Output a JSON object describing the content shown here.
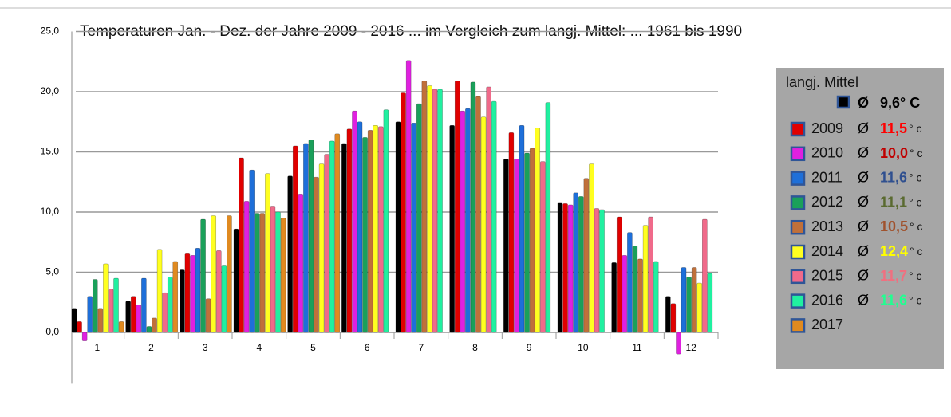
{
  "chart_data": {
    "type": "bar",
    "title": "Temperaturen  Jan. - Dez. der Jahre 2009 - 2016 ... im Vergleich zum   langj. Mittel: ... 1961  bis 1990",
    "categories": [
      "1",
      "2",
      "3",
      "4",
      "5",
      "6",
      "7",
      "8",
      "9",
      "10",
      "11",
      "12"
    ],
    "ylim": [
      -4.2,
      25
    ],
    "yticks": [
      {
        "value": 0,
        "label": "0,0"
      },
      {
        "value": 5,
        "label": "5,0"
      },
      {
        "value": 10,
        "label": "10,0"
      },
      {
        "value": 15,
        "label": "15,0"
      },
      {
        "value": 20,
        "label": "20,0"
      },
      {
        "value": 25,
        "label": "25,0"
      }
    ],
    "grid": true,
    "legend_symbol": "Ø",
    "mean_unit": "° c",
    "series": [
      {
        "name": "langj. Mittel",
        "color": "#000000",
        "mean": "9,6° C",
        "mean_color": "#000000",
        "values": [
          2.0,
          2.6,
          5.2,
          8.6,
          13.0,
          15.7,
          17.5,
          17.2,
          14.4,
          10.8,
          5.8,
          3.0
        ]
      },
      {
        "name": "2009",
        "color": "#e00000",
        "mean": "11,5",
        "mean_color": "#ff0000",
        "values": [
          0.9,
          3.0,
          6.6,
          14.5,
          15.5,
          16.9,
          19.9,
          20.9,
          16.6,
          10.7,
          9.6,
          2.4
        ]
      },
      {
        "name": "2010",
        "color": "#e020e0",
        "mean": "10,0",
        "mean_color": "#c00000",
        "values": [
          -0.7,
          2.3,
          6.4,
          10.9,
          11.5,
          18.4,
          22.6,
          18.4,
          14.4,
          10.6,
          6.4,
          -1.8
        ]
      },
      {
        "name": "2011",
        "color": "#1e6fd9",
        "mean": "11,6",
        "mean_color": "#2f4f8f",
        "values": [
          3.0,
          4.5,
          7.0,
          13.5,
          15.7,
          17.5,
          17.4,
          18.6,
          17.2,
          11.6,
          8.3,
          5.4
        ]
      },
      {
        "name": "2012",
        "color": "#1aa05a",
        "mean": "11,1",
        "mean_color": "#5a6a30",
        "values": [
          4.4,
          0.5,
          9.4,
          9.9,
          16.0,
          16.2,
          19.0,
          20.8,
          14.9,
          11.3,
          7.2,
          4.6
        ]
      },
      {
        "name": "2013",
        "color": "#c0703a",
        "mean": "10,5",
        "mean_color": "#a0522d",
        "values": [
          2.0,
          1.2,
          2.8,
          9.9,
          12.9,
          16.8,
          20.9,
          19.6,
          15.3,
          12.8,
          6.1,
          5.4
        ]
      },
      {
        "name": "2014",
        "color": "#ffff20",
        "mean": "12,4",
        "mean_color": "#ffff00",
        "values": [
          5.7,
          6.9,
          9.7,
          13.2,
          14.0,
          17.2,
          20.5,
          17.9,
          17.0,
          14.0,
          8.9,
          4.1
        ]
      },
      {
        "name": "2015",
        "color": "#f06a8a",
        "mean": "11,7",
        "mean_color": "#f07080",
        "values": [
          3.6,
          3.3,
          6.8,
          10.5,
          14.8,
          17.1,
          20.2,
          20.4,
          14.2,
          10.3,
          9.6,
          9.4
        ]
      },
      {
        "name": "2016",
        "color": "#20f0a0",
        "mean": "11,6",
        "mean_color": "#20ff90",
        "values": [
          4.5,
          4.6,
          5.6,
          10.0,
          15.9,
          18.5,
          20.2,
          19.2,
          19.1,
          10.2,
          5.9,
          4.9
        ]
      },
      {
        "name": "2017",
        "color": "#e08a20",
        "values": [
          0.9,
          5.9,
          9.7,
          9.5,
          16.5,
          null,
          null,
          null,
          null,
          null,
          null,
          null
        ]
      }
    ]
  }
}
